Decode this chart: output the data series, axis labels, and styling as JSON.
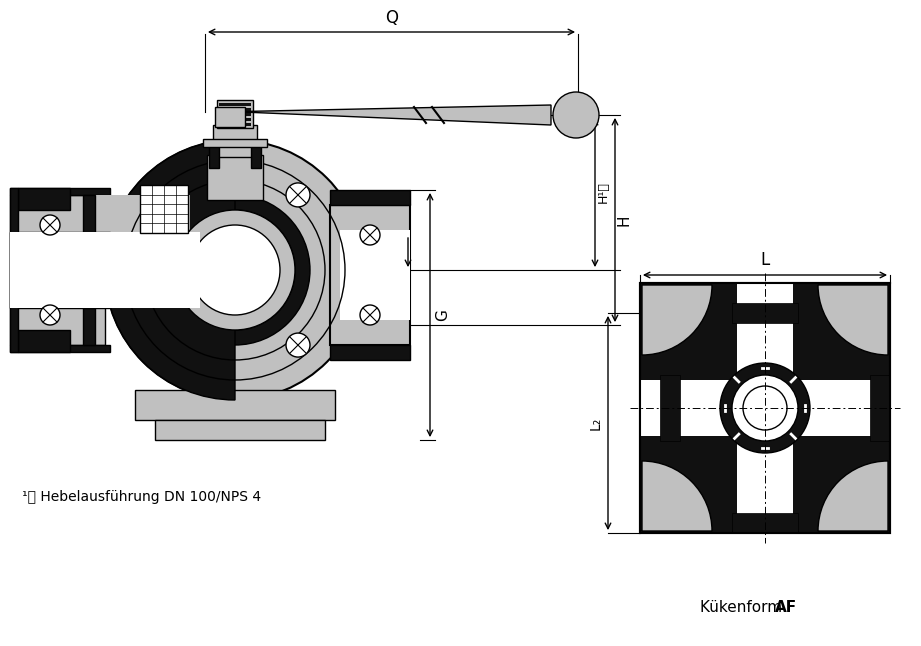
{
  "background_color": "#ffffff",
  "text_color": "#000000",
  "line_color": "#000000",
  "gray_fill": "#c0c0c0",
  "dark_fill": "#111111",
  "mid_gray": "#888888",
  "footnote": "¹⧯ Hebelausführung DN 100/NPS 4",
  "kukenform_label": "Kükenform ",
  "kukenform_bold": "AF",
  "dim_Q": "Q",
  "dim_H": "H",
  "dim_H1": "H¹⧯",
  "dim_G": "G",
  "dim_L": "L",
  "dim_L2": "L₂"
}
